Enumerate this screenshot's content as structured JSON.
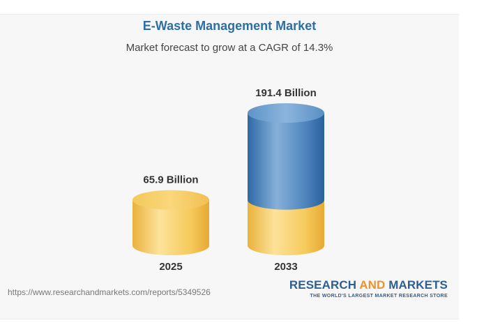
{
  "chart_data": {
    "type": "bar",
    "title": "E-Waste Management Market",
    "subtitle": "Market forecast to grow at a CAGR of 14.3%",
    "categories": [
      "2025",
      "2033"
    ],
    "values": [
      65.9,
      191.4
    ],
    "value_labels": [
      "65.9 Billion",
      "191.4 Billion"
    ],
    "unit": "Billion",
    "colors": {
      "base": "#f2c24f",
      "growth": "#3b76b0"
    }
  },
  "footer": {
    "source": "https://www.researchandmarkets.com/reports/5349526",
    "logo_part1": "RESEARCH ",
    "logo_part2": "AND",
    "logo_part3": " MARKETS",
    "tagline": "THE WORLD'S LARGEST MARKET RESEARCH STORE"
  }
}
